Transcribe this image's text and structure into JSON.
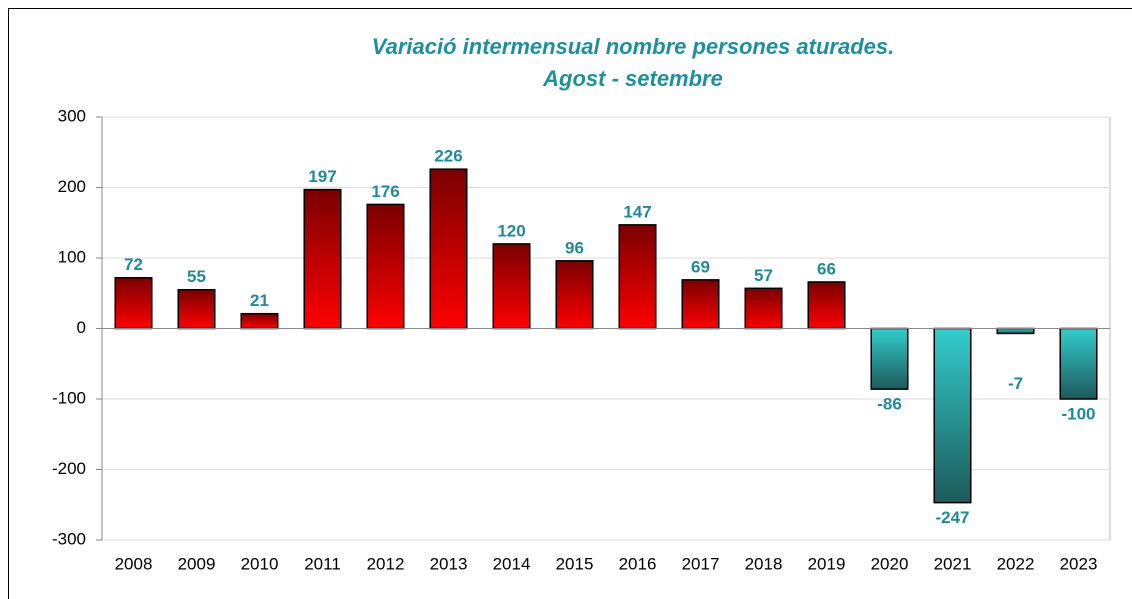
{
  "chart_data": {
    "type": "bar",
    "title": "Variació intermensual nombre persones aturades.",
    "subtitle": "Agost - setembre",
    "categories": [
      "2008",
      "2009",
      "2010",
      "2011",
      "2012",
      "2013",
      "2014",
      "2015",
      "2016",
      "2017",
      "2018",
      "2019",
      "2020",
      "2021",
      "2022",
      "2023"
    ],
    "values": [
      72,
      55,
      21,
      197,
      176,
      226,
      120,
      96,
      147,
      69,
      57,
      66,
      -86,
      -247,
      -7,
      -100
    ],
    "color_positive": [
      "#7a0000",
      "#ff0000"
    ],
    "color_negative": [
      "#33cccc",
      "#1d5a5a"
    ],
    "ylim": [
      -300,
      300
    ],
    "yticks": [
      -300,
      -200,
      -100,
      0,
      100,
      200,
      300
    ],
    "grid": true
  }
}
